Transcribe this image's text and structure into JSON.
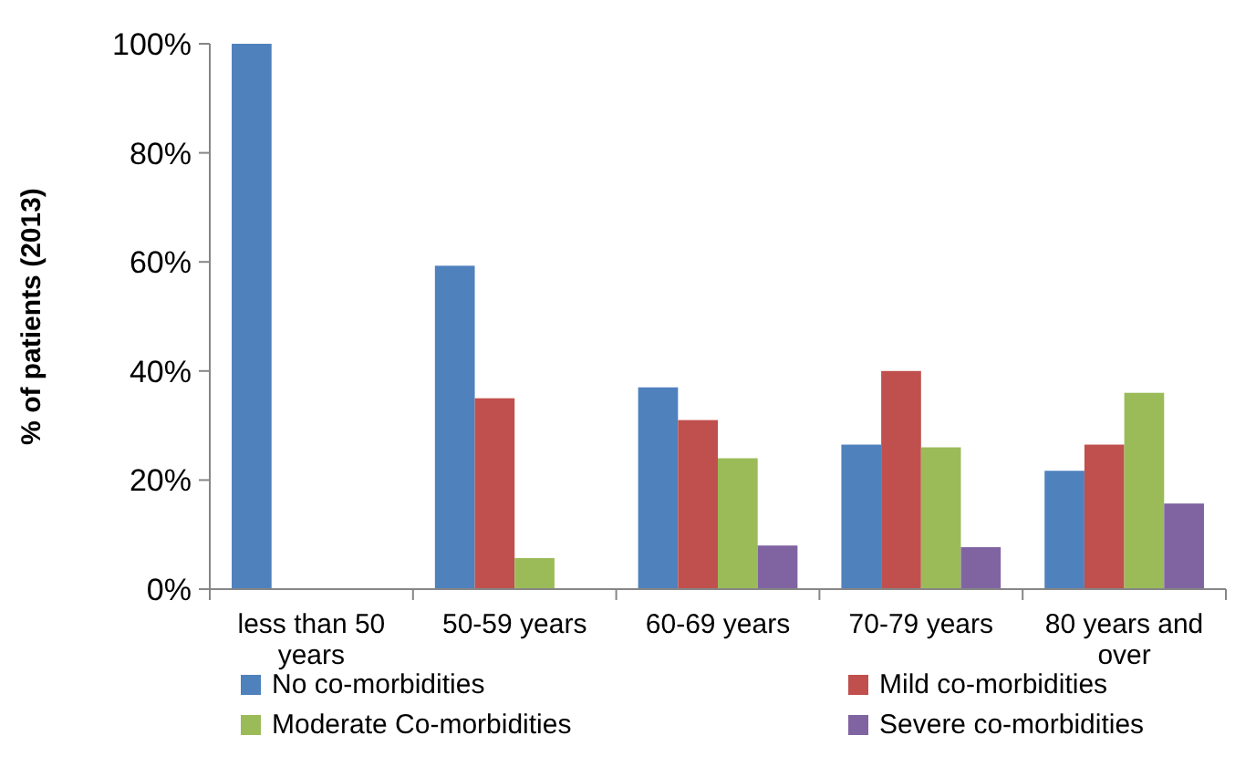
{
  "chart_data": {
    "type": "bar",
    "ylabel": "% of patients (2013)",
    "categories": [
      "less than 50 years",
      "50-59 years",
      "60-69 years",
      "70-79 years",
      "80 years and over"
    ],
    "series": [
      {
        "name": "No co-morbidities",
        "color": "#4f81bd",
        "values": [
          100,
          59.3,
          37,
          26.5,
          21.7
        ]
      },
      {
        "name": "Mild co-morbidities",
        "color": "#c0504d",
        "values": [
          0,
          35,
          31,
          40,
          26.5
        ]
      },
      {
        "name": "Moderate Co-morbidities",
        "color": "#9bbb59",
        "values": [
          0,
          5.7,
          24,
          26,
          36
        ]
      },
      {
        "name": "Severe co-morbidities",
        "color": "#8064a2",
        "values": [
          0,
          0,
          8,
          7.7,
          15.7
        ]
      }
    ],
    "ylim": [
      0,
      100
    ],
    "yticks": [
      {
        "value": 0,
        "label": "0%"
      },
      {
        "value": 20,
        "label": "20%"
      },
      {
        "value": 40,
        "label": "40%"
      },
      {
        "value": 60,
        "label": "60%"
      },
      {
        "value": 80,
        "label": "80%"
      },
      {
        "value": 100,
        "label": "100%"
      }
    ],
    "legend": "bottom"
  }
}
